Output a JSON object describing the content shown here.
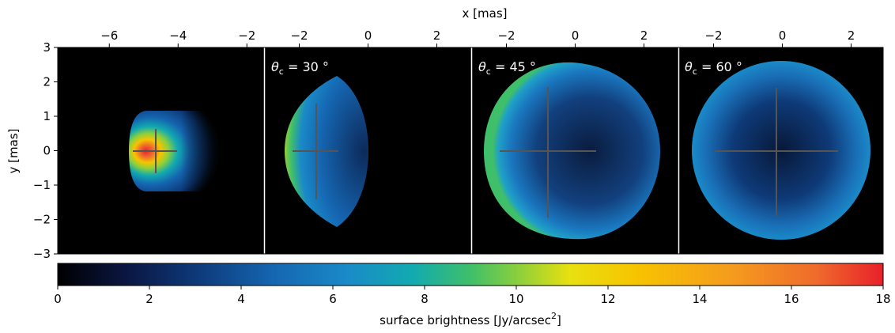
{
  "figure": {
    "x_axis_label": "x [mas]",
    "y_axis_label": "y [mas]",
    "colorbar": {
      "label_main": "surface brightness [Jy/arcsec",
      "label_sup": "2",
      "label_end": "]",
      "range": [
        0,
        18
      ],
      "ticks": [
        0,
        2,
        4,
        6,
        8,
        10,
        12,
        14,
        16,
        18
      ],
      "colormap": [
        "#000000",
        "#0a1540",
        "#0d3a7a",
        "#1565b0",
        "#1a8ac8",
        "#12aab0",
        "#3fbf6a",
        "#8fd03a",
        "#e8e010",
        "#f7c400",
        "#f59a1e",
        "#ef6a2c",
        "#e8202a"
      ]
    }
  },
  "chart_data": [
    {
      "type": "heatmap",
      "panel_label": null,
      "x_ticks": [
        -6,
        -4,
        -2
      ],
      "xlim": [
        -7.5,
        -1.5
      ],
      "y_ticks": [
        -3,
        -2,
        -1,
        0,
        1,
        2,
        3
      ],
      "ylim": [
        -3,
        3
      ],
      "background": "black",
      "note": "compact emission region with a peak of about 17 Jy/arcsec^2 near x=-5.2, y=0, fading toward x=-2.5"
    },
    {
      "type": "heatmap",
      "panel_label": "θc = 30°",
      "panel_label_theta": "θ",
      "panel_label_sub": "c",
      "panel_label_rest": " = 30 °",
      "x_ticks": [
        -2,
        0,
        2
      ],
      "xlim": [
        -3,
        3
      ],
      "ylim": [
        -3,
        3
      ],
      "background": "black"
    },
    {
      "type": "heatmap",
      "panel_label": "θc = 45°",
      "panel_label_theta": "θ",
      "panel_label_sub": "c",
      "panel_label_rest": " = 45 °",
      "x_ticks": [
        -2,
        0,
        2
      ],
      "xlim": [
        -3,
        3
      ],
      "ylim": [
        -3,
        3
      ],
      "background": "black"
    },
    {
      "type": "heatmap",
      "panel_label": "θc = 60°",
      "panel_label_theta": "θ",
      "panel_label_sub": "c",
      "panel_label_rest": " = 60 °",
      "x_ticks": [
        -2,
        0,
        2
      ],
      "xlim": [
        -3,
        3
      ],
      "ylim": [
        -3,
        3
      ],
      "background": "black"
    }
  ]
}
